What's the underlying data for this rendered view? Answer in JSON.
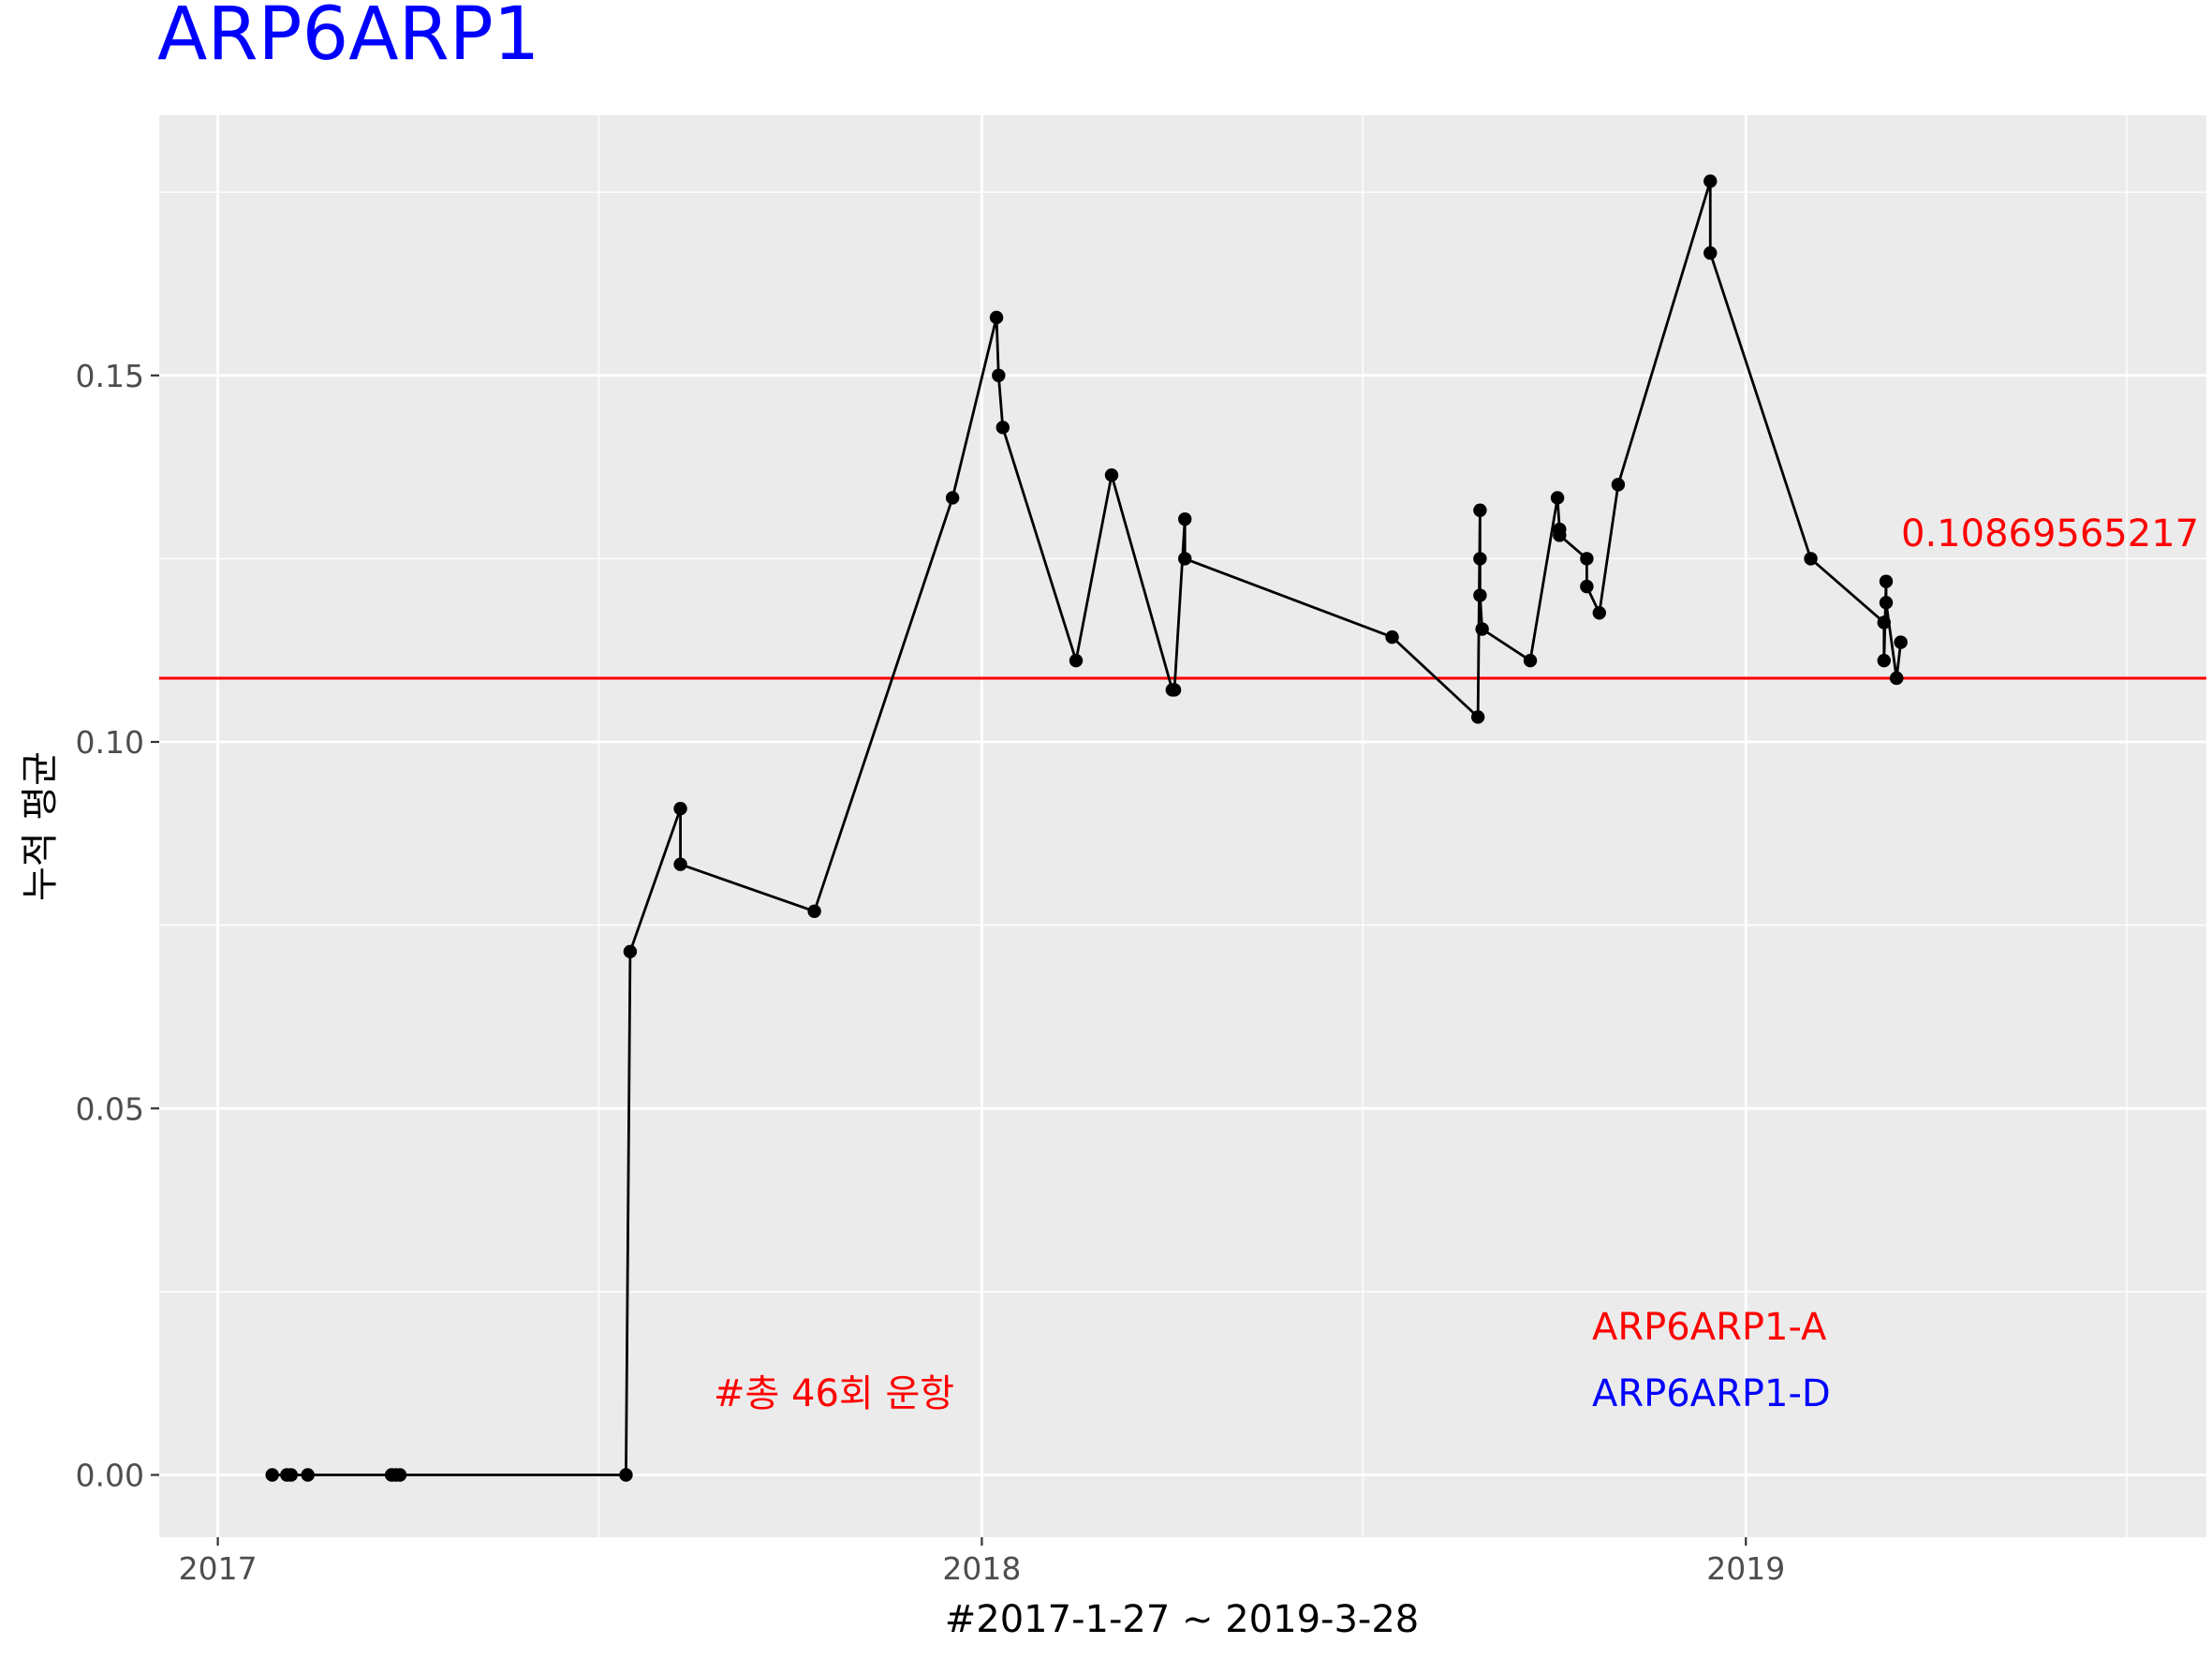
{
  "chart_data": {
    "type": "line",
    "title": "ARP6ARP1",
    "title_color": "#0000FF",
    "xlabel": "#2017-1-27 ~ 2019-3-28",
    "ylabel": "누적 평균",
    "x_ticks": [
      "2017",
      "2018",
      "2019"
    ],
    "y_ticks": [
      "0.00",
      "0.05",
      "0.10",
      "0.15"
    ],
    "xlim": [
      "2016-12-04",
      "2019-08-09"
    ],
    "ylim": [
      -0.0085,
      0.1855
    ],
    "grid": true,
    "panel_background": "#EBEBEB",
    "line_color": "#000000",
    "hline": {
      "value": 0.1087,
      "color": "#FF0000",
      "label": "0.10869565217"
    },
    "annotations": [
      {
        "text": "#총 46회 운항",
        "color": "#FF0000"
      },
      {
        "text": "ARP6ARP1-A",
        "color": "#FF0000"
      },
      {
        "text": "ARP6ARP1-D",
        "color": "#0000FF"
      }
    ],
    "series": [
      {
        "points": [
          [
            "2017-01-27",
            0.0
          ],
          [
            "2017-02-03",
            0.0
          ],
          [
            "2017-02-05",
            0.0
          ],
          [
            "2017-02-13",
            0.0
          ],
          [
            "2017-03-25",
            0.0
          ],
          [
            "2017-03-27",
            0.0
          ],
          [
            "2017-03-29",
            0.0
          ],
          [
            "2017-07-15",
            0.0
          ],
          [
            "2017-07-17",
            0.0714
          ],
          [
            "2017-08-10",
            0.0909
          ],
          [
            "2017-08-10",
            0.0833
          ],
          [
            "2017-10-13",
            0.0769
          ],
          [
            "2017-12-18",
            0.1333
          ],
          [
            "2018-01-08",
            0.1579
          ],
          [
            "2018-01-09",
            0.15
          ],
          [
            "2018-01-11",
            0.1429
          ],
          [
            "2018-02-15",
            0.1111
          ],
          [
            "2018-03-04",
            0.1364
          ],
          [
            "2018-04-02",
            0.1071
          ],
          [
            "2018-04-03",
            0.1071
          ],
          [
            "2018-04-08",
            0.1304
          ],
          [
            "2018-04-08",
            0.125
          ],
          [
            "2018-07-16",
            0.1143
          ],
          [
            "2018-08-26",
            0.1034
          ],
          [
            "2018-08-27",
            0.1316
          ],
          [
            "2018-08-27",
            0.125
          ],
          [
            "2018-08-27",
            0.12
          ],
          [
            "2018-08-28",
            0.1154
          ],
          [
            "2018-09-20",
            0.1111
          ],
          [
            "2018-10-03",
            0.1333
          ],
          [
            "2018-10-04",
            0.129
          ],
          [
            "2018-10-04",
            0.1282
          ],
          [
            "2018-10-17",
            0.125
          ],
          [
            "2018-10-17",
            0.1212
          ],
          [
            "2018-10-23",
            0.1176
          ],
          [
            "2018-11-01",
            0.1351
          ],
          [
            "2018-12-15",
            0.1765
          ],
          [
            "2018-12-15",
            0.1667
          ],
          [
            "2019-02-01",
            0.125
          ],
          [
            "2019-03-08",
            0.1163
          ],
          [
            "2019-03-08",
            0.1111
          ],
          [
            "2019-03-09",
            0.1219
          ],
          [
            "2019-03-09",
            0.119
          ],
          [
            "2019-03-14",
            0.1087
          ],
          [
            "2019-03-14",
            0.1087
          ],
          [
            "2019-03-16",
            0.1136
          ]
        ]
      }
    ]
  }
}
